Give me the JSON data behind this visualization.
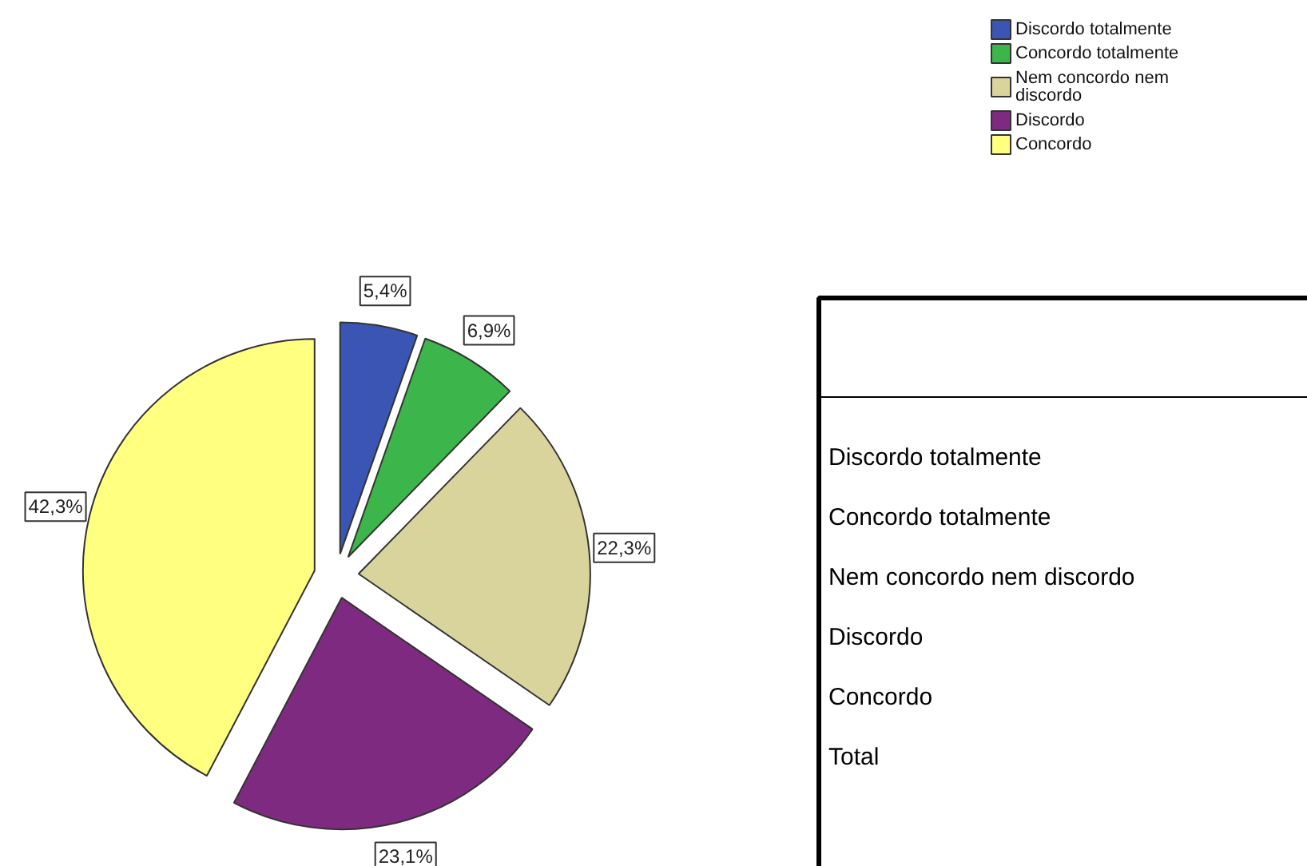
{
  "chart_data": {
    "type": "pie",
    "categories": [
      "Discordo totalmente",
      "Concordo totalmente",
      "Nem concordo nem discordo",
      "Discordo",
      "Concordo"
    ],
    "values": [
      5.4,
      6.9,
      22.3,
      23.1,
      42.3
    ],
    "colors": [
      "#3a55b4",
      "#3cb54a",
      "#d8d49c",
      "#7e2a80",
      "#ffff80"
    ],
    "value_labels": [
      "5,4%",
      "6,9%",
      "22,3%",
      "23,1%",
      "42,3%"
    ],
    "legend": "top right",
    "annotations": [
      "Discordo totalmente",
      "Concordo totalmente",
      "Nem concordo nem discordo",
      "Discordo",
      "Concordo",
      "Total"
    ]
  }
}
